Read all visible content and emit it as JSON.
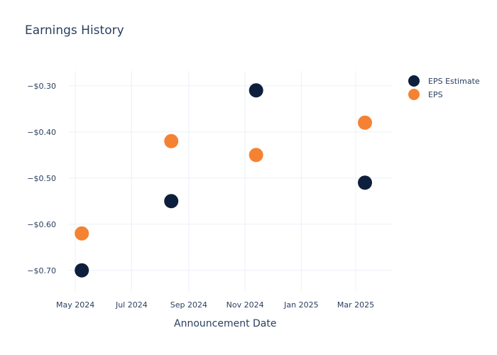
{
  "chart_data": {
    "type": "scatter",
    "title": "Earnings History",
    "xlabel": "Announcement Date",
    "ylabel": "",
    "x_ticks": [
      {
        "date": "2024-05-01",
        "label": "May 2024"
      },
      {
        "date": "2024-07-01",
        "label": "Jul 2024"
      },
      {
        "date": "2024-09-01",
        "label": "Sep 2024"
      },
      {
        "date": "2024-11-01",
        "label": "Nov 2024"
      },
      {
        "date": "2025-01-01",
        "label": "Jan 2025"
      },
      {
        "date": "2025-03-01",
        "label": "Mar 2025"
      }
    ],
    "y_ticks": [
      {
        "value": -0.3,
        "label": "−$0.30"
      },
      {
        "value": -0.4,
        "label": "−$0.40"
      },
      {
        "value": -0.5,
        "label": "−$0.50"
      },
      {
        "value": -0.6,
        "label": "−$0.60"
      },
      {
        "value": -0.7,
        "label": "−$0.70"
      }
    ],
    "xlim": [
      "2024-04-24",
      "2025-04-10"
    ],
    "ylim": [
      -0.745,
      -0.268
    ],
    "grid": true,
    "legend_position": "top-right",
    "series": [
      {
        "name": "EPS Estimate",
        "color": "#0d1f3c",
        "points": [
          {
            "x": "2024-05-08",
            "y": -0.7
          },
          {
            "x": "2024-08-13",
            "y": -0.55
          },
          {
            "x": "2024-11-13",
            "y": -0.31
          },
          {
            "x": "2025-03-11",
            "y": -0.51
          }
        ]
      },
      {
        "name": "EPS",
        "color": "#f58233",
        "points": [
          {
            "x": "2024-05-08",
            "y": -0.62
          },
          {
            "x": "2024-08-13",
            "y": -0.42
          },
          {
            "x": "2024-11-13",
            "y": -0.45
          },
          {
            "x": "2025-03-11",
            "y": -0.38
          }
        ]
      }
    ]
  }
}
